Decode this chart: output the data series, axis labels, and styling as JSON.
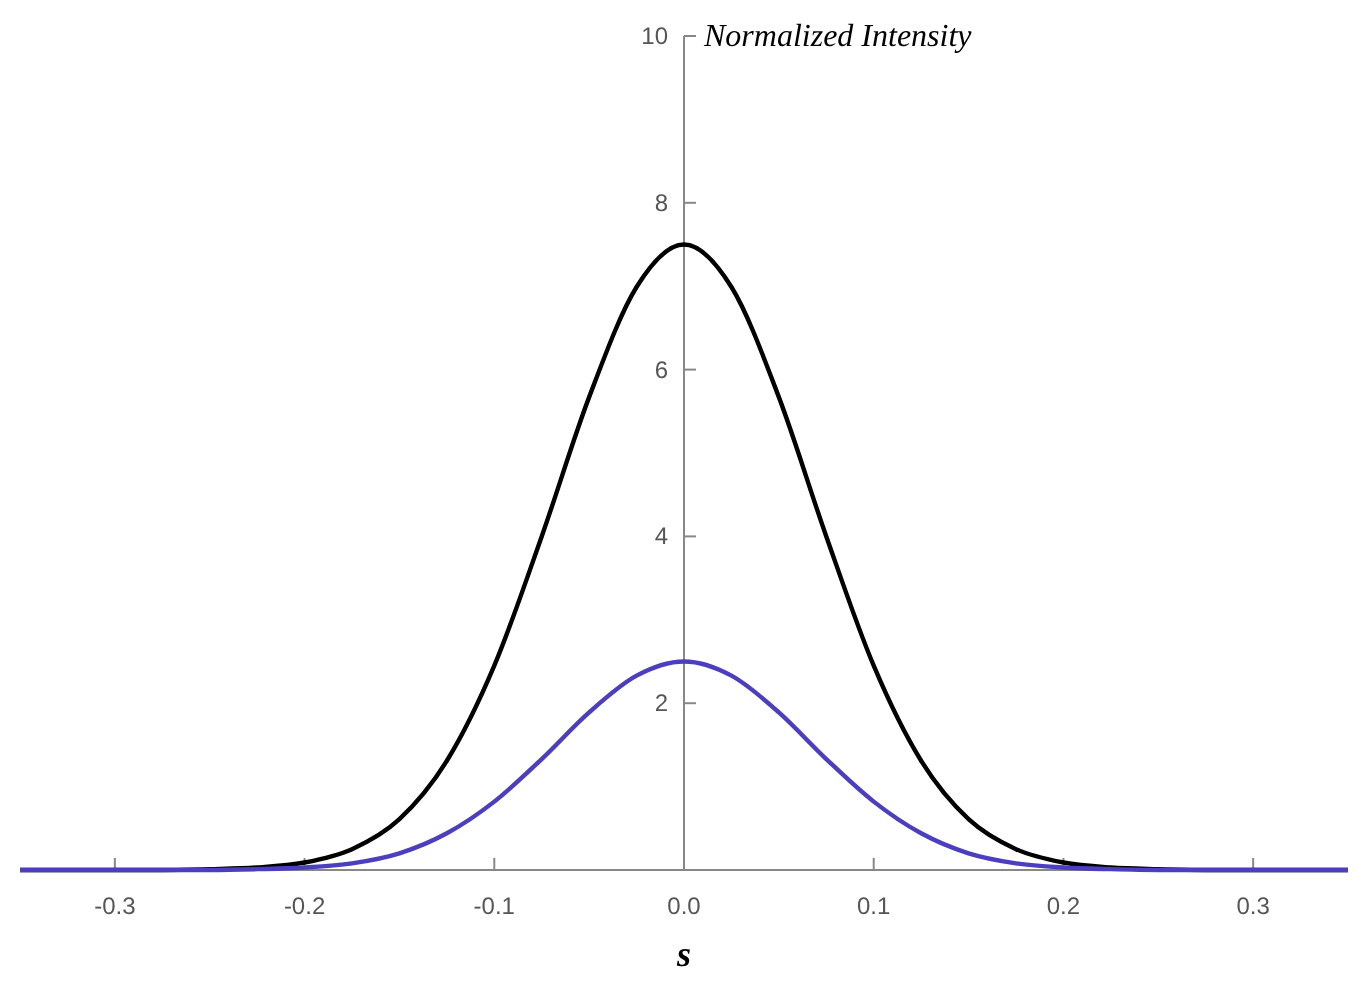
{
  "chart_data": {
    "type": "line",
    "xlabel": "s",
    "ylabel": "Normalized Intensity",
    "x": [
      -0.35,
      -0.325,
      -0.3,
      -0.275,
      -0.25,
      -0.225,
      -0.2,
      -0.175,
      -0.15,
      -0.125,
      -0.1,
      -0.075,
      -0.05,
      -0.025,
      0,
      0.025,
      0.05,
      0.075,
      0.1,
      0.125,
      0.15,
      0.175,
      0.2,
      0.225,
      0.25,
      0.275,
      0.3,
      0.325,
      0.35
    ],
    "series": [
      {
        "color": "#000000",
        "values": [
          0,
          0,
          0,
          0,
          0.01,
          0.03,
          0.09,
          0.25,
          0.61,
          1.31,
          2.45,
          4.0,
          5.67,
          6.99,
          7.5,
          6.99,
          5.67,
          4.0,
          2.45,
          1.31,
          0.61,
          0.25,
          0.09,
          0.03,
          0.01,
          0,
          0,
          0,
          0
        ]
      },
      {
        "color": "#4b3fc0",
        "values": [
          0,
          0,
          0,
          0,
          0,
          0.01,
          0.03,
          0.08,
          0.2,
          0.44,
          0.82,
          1.33,
          1.89,
          2.33,
          2.5,
          2.33,
          1.89,
          1.33,
          0.82,
          0.44,
          0.2,
          0.08,
          0.03,
          0.01,
          0,
          0,
          0,
          0,
          0
        ]
      }
    ],
    "xlim": [
      -0.35,
      0.35
    ],
    "ylim": [
      0,
      10
    ],
    "xticks": [
      -0.3,
      -0.2,
      -0.1,
      {
        "value": 0,
        "label": "0.0"
      },
      0.1,
      0.2,
      0.3
    ],
    "yticks": [
      2,
      4,
      6,
      8,
      10
    ],
    "grid": false,
    "marker": "none",
    "line_style": "solid"
  }
}
